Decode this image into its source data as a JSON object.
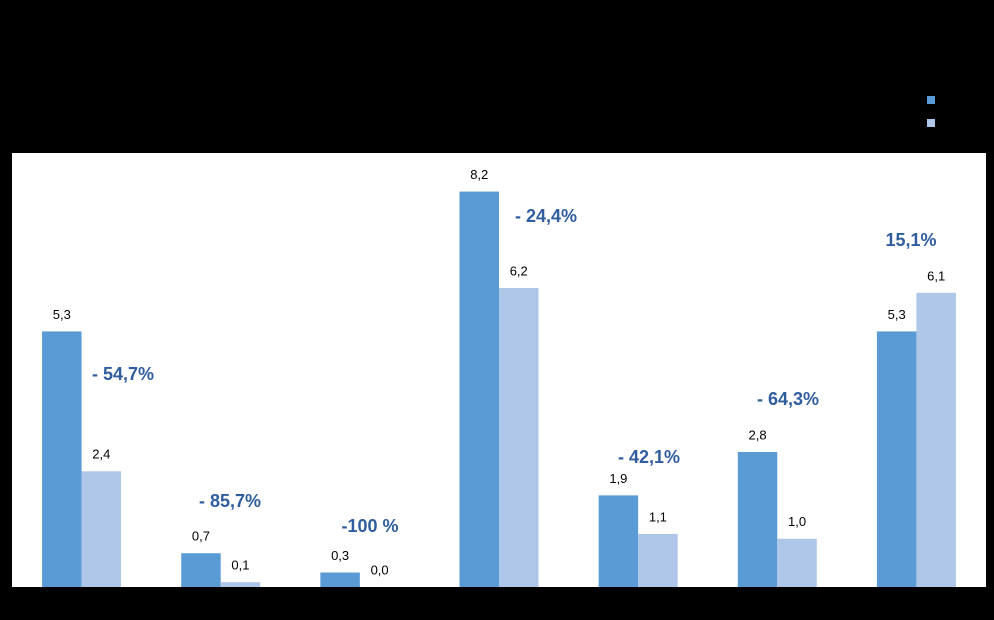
{
  "chart_data": {
    "type": "bar",
    "categories": [
      null,
      null,
      null,
      null,
      null,
      null,
      null
    ],
    "series": [
      {
        "color": "#5b9bd5",
        "values": [
          5.3,
          0.7,
          0.3,
          8.2,
          1.9,
          2.8,
          5.3
        ],
        "value_labels": [
          "5,3",
          "0,7",
          "0,3",
          "8,2",
          "1,9",
          "2,8",
          "5,3"
        ]
      },
      {
        "color": "#aec6e8",
        "values": [
          2.4,
          0.1,
          0.0,
          6.2,
          1.1,
          1.0,
          6.1
        ],
        "value_labels": [
          "2,4",
          "0,1",
          "0,0",
          "6,2",
          "1,1",
          "1,0",
          "6,1"
        ]
      }
    ],
    "annotations": [
      "- 54,7%",
      "- 85,7%",
      "-100 %",
      "- 24,4%",
      "- 42,1%",
      "- 64,3%",
      "15,1%"
    ],
    "ylim": [
      0,
      9
    ]
  }
}
